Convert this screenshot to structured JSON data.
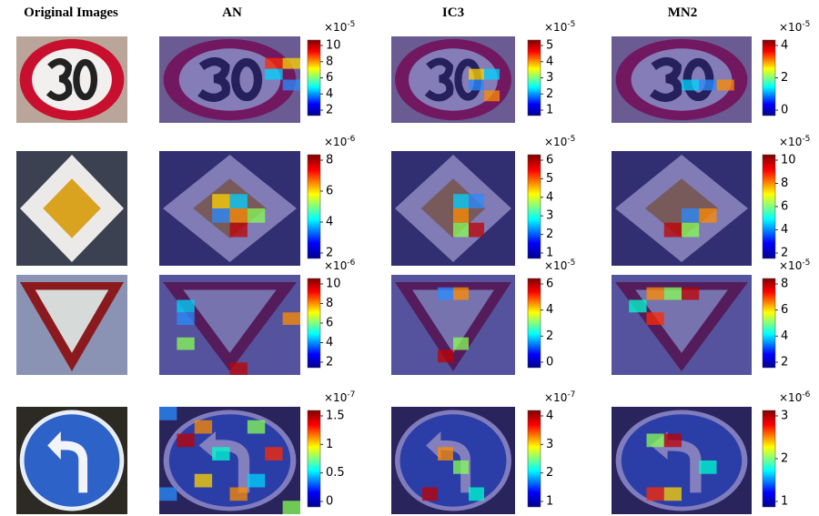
{
  "columns": [
    "Original Images",
    "AN",
    "IC3",
    "MN2"
  ],
  "rows": [
    {
      "colorbars": [
        {
          "scale": {
            "base": "×10",
            "exponent": "-5"
          },
          "ticks": [
            10,
            8,
            6,
            4,
            2
          ]
        },
        {
          "scale": {
            "base": "×10",
            "exponent": "-5"
          },
          "ticks": [
            5,
            4,
            3,
            2,
            1
          ]
        },
        {
          "scale": {
            "base": "×10",
            "exponent": "-5"
          },
          "ticks": [
            4,
            2,
            0
          ]
        }
      ]
    },
    {
      "colorbars": [
        {
          "scale": {
            "base": "×10",
            "exponent": "-6"
          },
          "ticks": [
            8,
            6,
            4,
            2
          ]
        },
        {
          "scale": {
            "base": "×10",
            "exponent": "-5"
          },
          "ticks": [
            6,
            5,
            4,
            3,
            2,
            1
          ]
        },
        {
          "scale": {
            "base": "×10",
            "exponent": "-5"
          },
          "ticks": [
            10,
            8,
            6,
            4,
            2
          ]
        }
      ]
    },
    {
      "colorbars": [
        {
          "scale": {
            "base": "×10",
            "exponent": "-6"
          },
          "ticks": [
            10,
            8,
            6,
            4,
            2
          ]
        },
        {
          "scale": {
            "base": "×10",
            "exponent": "-5"
          },
          "ticks": [
            6,
            4,
            2,
            0
          ]
        },
        {
          "scale": {
            "base": "×10",
            "exponent": "-5"
          },
          "ticks": [
            8,
            6,
            4,
            2
          ]
        }
      ]
    },
    {
      "colorbars": [
        {
          "scale": {
            "base": "×10",
            "exponent": "-7"
          },
          "ticks": [
            1.5,
            1,
            0.5,
            0
          ]
        },
        {
          "scale": {
            "base": "×10",
            "exponent": "-7"
          },
          "ticks": [
            4,
            3,
            2,
            1
          ]
        },
        {
          "scale": {
            "base": "×10",
            "exponent": "-6"
          },
          "ticks": [
            3,
            2,
            1
          ]
        }
      ]
    }
  ]
}
